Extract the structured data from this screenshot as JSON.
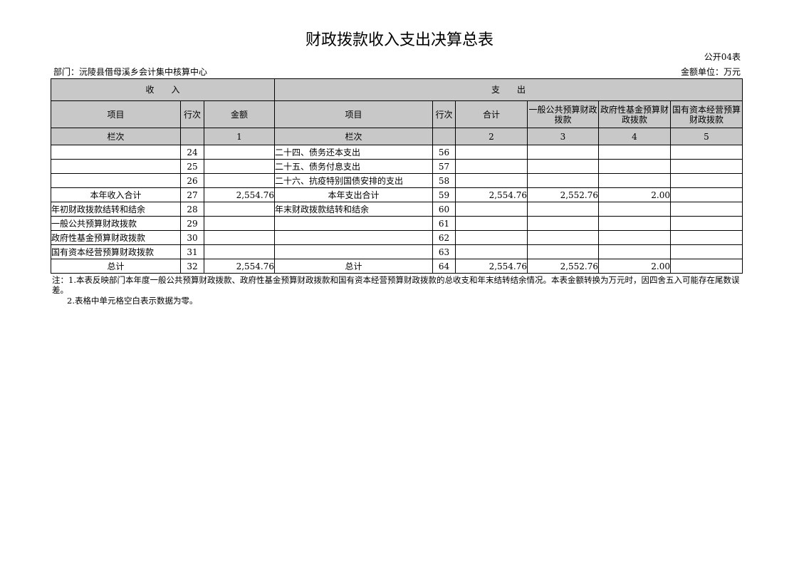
{
  "title": "财政拨款收入支出决算总表",
  "form_code": "公开04表",
  "department": "部门：沅陵县借母溪乡会计集中核算中心",
  "unit": "金额单位：万元",
  "header": {
    "income": "收　　入",
    "expense": "支　　出",
    "item": "项目",
    "line": "行次",
    "amount": "金额",
    "total": "合计",
    "general": "一般公共预算财政拨款",
    "fund": "政府性基金预算财政拨款",
    "state": "国有资本经营预算财政拨款",
    "col_label": "栏次",
    "c1": "1",
    "c2": "2",
    "c3": "3",
    "c4": "4",
    "c5": "5"
  },
  "rows": [
    {
      "in_item": "",
      "in_line": "24",
      "in_amt": "",
      "ex_item": "二十四、债务还本支出",
      "ex_line": "56",
      "total": "",
      "general": "",
      "fund": "",
      "state": ""
    },
    {
      "in_item": "",
      "in_line": "25",
      "in_amt": "",
      "ex_item": "二十五、债务付息支出",
      "ex_line": "57",
      "total": "",
      "general": "",
      "fund": "",
      "state": ""
    },
    {
      "in_item": "",
      "in_line": "26",
      "in_amt": "",
      "ex_item": "二十六、抗疫特别国债安排的支出",
      "ex_line": "58",
      "total": "",
      "general": "",
      "fund": "",
      "state": ""
    },
    {
      "in_item": "本年收入合计",
      "in_line": "27",
      "in_amt": "2,554.76",
      "ex_item": "本年支出合计",
      "ex_line": "59",
      "total": "2,554.76",
      "general": "2,552.76",
      "fund": "2.00",
      "state": ""
    },
    {
      "in_item": "年初财政拨款结转和结余",
      "in_line": "28",
      "in_amt": "",
      "ex_item": "年末财政拨款结转和结余",
      "ex_line": "60",
      "total": "",
      "general": "",
      "fund": "",
      "state": ""
    },
    {
      "in_item": "一般公共预算财政拨款",
      "in_line": "29",
      "in_amt": "",
      "ex_item": "",
      "ex_line": "61",
      "total": "",
      "general": "",
      "fund": "",
      "state": ""
    },
    {
      "in_item": "政府性基金预算财政拨款",
      "in_line": "30",
      "in_amt": "",
      "ex_item": "",
      "ex_line": "62",
      "total": "",
      "general": "",
      "fund": "",
      "state": ""
    },
    {
      "in_item": "国有资本经营预算财政拨款",
      "in_line": "31",
      "in_amt": "",
      "ex_item": "",
      "ex_line": "63",
      "total": "",
      "general": "",
      "fund": "",
      "state": ""
    },
    {
      "in_item": "总计",
      "in_line": "32",
      "in_amt": "2,554.76",
      "ex_item": "总计",
      "ex_line": "64",
      "total": "2,554.76",
      "general": "2,552.76",
      "fund": "2.00",
      "state": ""
    }
  ],
  "notes": [
    "注：1.本表反映部门本年度一般公共预算财政拨款、政府性基金预算财政拨款和国有资本经营预算财政拨款的总收支和年末结转结余情况。本表金额转换为万元时，因四舍五入可能存在尾数误差。",
    "2.表格中单元格空白表示数据为零。"
  ]
}
